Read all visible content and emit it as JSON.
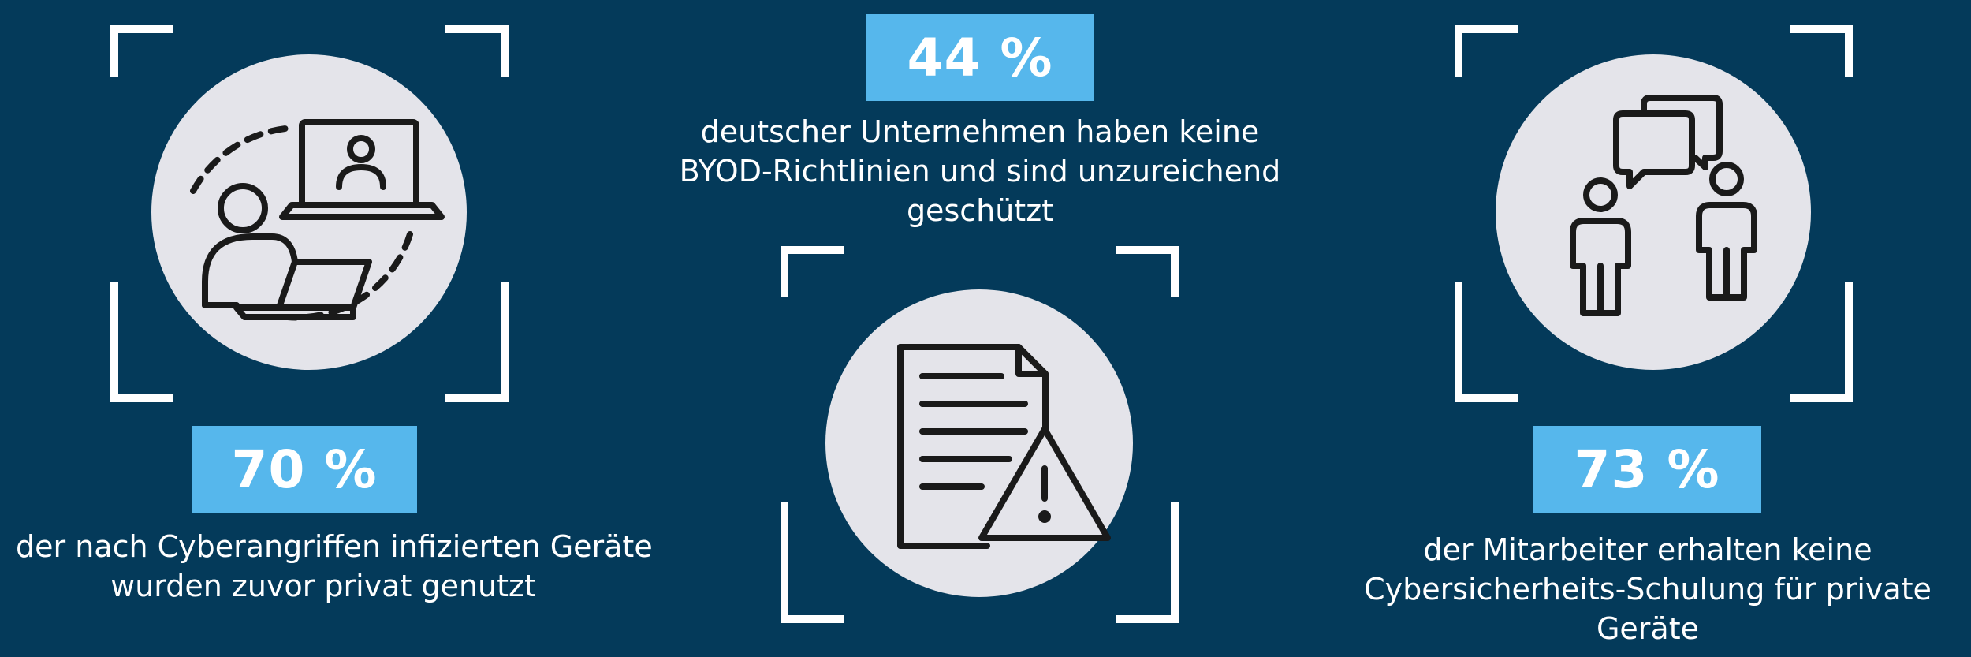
{
  "colors": {
    "background": "#043a5a",
    "accent": "#56b7ec",
    "circle": "#e4e4ea",
    "icon_stroke": "#1a1a1a"
  },
  "panels": [
    {
      "icon": "remote-work-icon",
      "stat": "70 %",
      "caption_lines": [
        "der nach Cyberangriffen infizierten Geräte",
        "wurden zuvor privat genutzt"
      ]
    },
    {
      "icon": "document-warning-icon",
      "stat": "44 %",
      "caption_lines": [
        "deutscher Unternehmen haben keine",
        "BYOD-Richtlinien und sind unzureichend",
        "geschützt"
      ]
    },
    {
      "icon": "people-chat-icon",
      "stat": "73 %",
      "caption_lines": [
        "der Mitarbeiter erhalten keine",
        "Cybersicherheits-Schulung für private",
        "Geräte"
      ]
    }
  ]
}
